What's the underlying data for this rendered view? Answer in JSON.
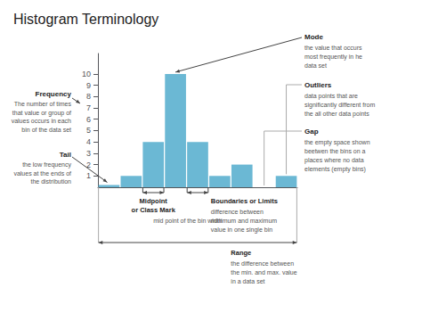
{
  "chart_data": {
    "type": "bar",
    "title": "Histogram Terminology",
    "categories": [
      null,
      null,
      null,
      null,
      null,
      null,
      null,
      null,
      null
    ],
    "values": [
      0.2,
      1,
      4,
      10,
      4,
      1,
      2,
      0,
      1
    ],
    "color": "#6bb8d4",
    "ylim": [
      0,
      11.8
    ],
    "yticks": [
      1,
      2,
      3,
      4,
      5,
      6,
      7,
      8,
      9,
      10
    ],
    "grid": false,
    "tick_labels": "y",
    "annotations": [
      {
        "label": "Mode",
        "text": "the value that occurs\nmost frequently in he\ndata set"
      },
      {
        "label": "Frequency",
        "text": "The number of times\nthat value or group of\nvalues occurs in each\nbin of the data set"
      },
      {
        "label": "Tail",
        "text": "the low frequency\nvalues at the ends of\nthe distribution"
      },
      {
        "label": "Outliers",
        "text": "data points that are\nsignificantly different from\nthe all other data points"
      },
      {
        "label": "Gap",
        "text": "the empty space shown\nbeetwen the bins on a\nplaces where no data\nelements (empty bins)"
      },
      {
        "label": "Midpoint\nor Class Mark",
        "text": "mid point of the bin width"
      },
      {
        "label": "Boundaries or Limits",
        "text": "difference between\nminimum and maximum\nvalue in one single bin"
      },
      {
        "label": "Range",
        "text": "the difference between\nthe min. and max. value\nin a data set"
      }
    ]
  }
}
